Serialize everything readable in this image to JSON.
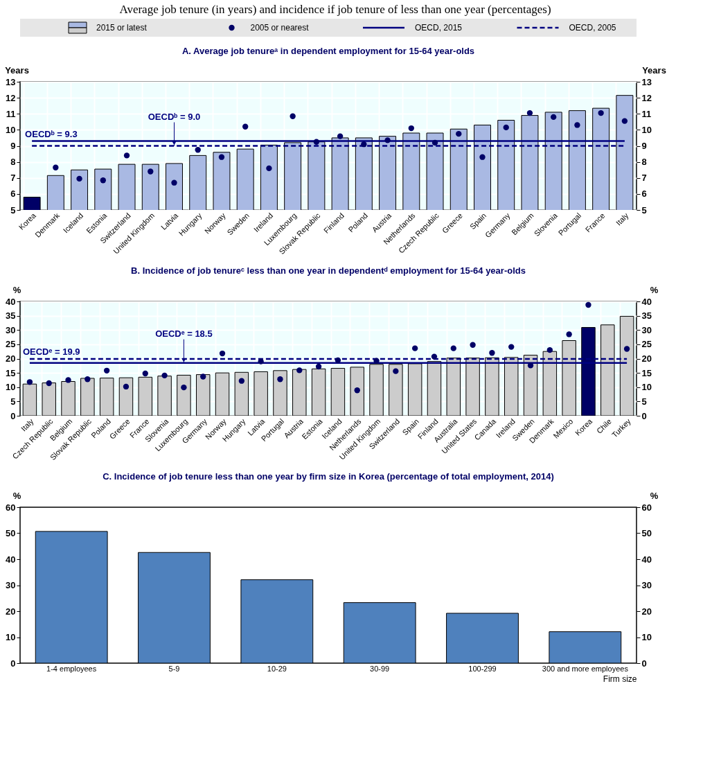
{
  "chart_data": [
    {
      "type": "bar",
      "title": "Average job tenure (in years) and incidence if job tenure of less than one year (percentages)",
      "subtitle": "A. Average job tenureᵃ in dependent employment for 15-64 year-olds",
      "legend": "top",
      "grid": true,
      "ylabel": "Years",
      "y2label": "Years",
      "ylim": [
        5,
        13
      ],
      "yticks": [
        5,
        6,
        7,
        8,
        9,
        10,
        11,
        12,
        13
      ],
      "y2lim": [
        5,
        13
      ],
      "y2ticks": [
        5,
        6,
        7,
        8,
        9,
        10,
        11,
        12,
        13
      ],
      "categories": [
        "Korea",
        "Denmark",
        "Iceland",
        "Estonia",
        "Switzerland",
        "United Kingdom",
        "Latvia",
        "Hungary",
        "Norway",
        "Sweden",
        "Ireland",
        "Luxembourg",
        "Slovak Republic",
        "Finland",
        "Poland",
        "Austria",
        "Netherlands",
        "Czech Republic",
        "Greece",
        "Spain",
        "Germany",
        "Belgium",
        "Slovenia",
        "Portugal",
        "France",
        "Italy"
      ],
      "series": [
        {
          "name": "2015 or latest",
          "type": "bar",
          "colors": [
            "#000066",
            "#a9b9e3",
            "#a9b9e3",
            "#a9b9e3",
            "#a9b9e3",
            "#a9b9e3",
            "#a9b9e3",
            "#a9b9e3",
            "#a9b9e3",
            "#a9b9e3",
            "#a9b9e3",
            "#a9b9e3",
            "#a9b9e3",
            "#a9b9e3",
            "#a9b9e3",
            "#a9b9e3",
            "#a9b9e3",
            "#a9b9e3",
            "#a9b9e3",
            "#a9b9e3",
            "#a9b9e3",
            "#a9b9e3",
            "#a9b9e3",
            "#a9b9e3",
            "#a9b9e3",
            "#a9b9e3"
          ],
          "values": [
            5.8,
            7.15,
            7.5,
            7.55,
            7.85,
            7.85,
            7.9,
            8.4,
            8.6,
            8.8,
            9.05,
            9.2,
            9.25,
            9.5,
            9.5,
            9.6,
            9.8,
            9.8,
            10.05,
            10.3,
            10.6,
            10.9,
            11.1,
            11.2,
            11.35,
            12.15
          ]
        },
        {
          "name": "2005 or nearest",
          "type": "scatter",
          "color": "#000066",
          "values": [
            null,
            7.65,
            6.95,
            6.85,
            8.4,
            7.4,
            6.7,
            8.75,
            8.3,
            10.2,
            7.6,
            10.85,
            9.25,
            9.6,
            9.1,
            9.35,
            10.1,
            9.2,
            9.75,
            8.3,
            10.15,
            11.05,
            10.8,
            10.3,
            11.05,
            10.55
          ]
        },
        {
          "name": "OECD, 2015",
          "type": "line",
          "line_style": "solid",
          "color": "#000080",
          "values": [
            9.3,
            9.3,
            9.3,
            9.3,
            9.3,
            9.3,
            9.3,
            9.3,
            9.3,
            9.3,
            9.3,
            9.3,
            9.3,
            9.3,
            9.3,
            9.3,
            9.3,
            9.3,
            9.3,
            9.3,
            9.3,
            9.3,
            9.3,
            9.3,
            9.3,
            9.3
          ]
        },
        {
          "name": "OECD, 2005",
          "type": "line",
          "line_style": "dashed",
          "color": "#000080",
          "values": [
            9.0,
            9.0,
            9.0,
            9.0,
            9.0,
            9.0,
            9.0,
            9.0,
            9.0,
            9.0,
            9.0,
            9.0,
            9.0,
            9.0,
            9.0,
            9.0,
            9.0,
            9.0,
            9.0,
            9.0,
            9.0,
            9.0,
            9.0,
            9.0,
            9.0,
            9.0
          ]
        }
      ],
      "annotations": [
        {
          "text": "OECDᵇ = 9.3",
          "x": "Korea",
          "y": 9.3
        },
        {
          "text": "OECDᵇ = 9.0",
          "x": "Latvia",
          "y": 9.0
        }
      ]
    },
    {
      "type": "bar",
      "title": "B. Incidence of job tenureᶜ less than one year in dependentᵈ employment for 15-64 year-olds",
      "grid": true,
      "ylabel": "%",
      "y2label": "%",
      "ylim": [
        0,
        40
      ],
      "yticks": [
        0,
        5,
        10,
        15,
        20,
        25,
        30,
        35,
        40
      ],
      "y2lim": [
        0,
        40
      ],
      "y2ticks": [
        0,
        5,
        10,
        15,
        20,
        25,
        30,
        35,
        40
      ],
      "categories": [
        "Italy",
        "Czech Republic",
        "Belgium",
        "Slovak Republic",
        "Poland",
        "Greece",
        "France",
        "Slovenia",
        "Luxembourg",
        "Germany",
        "Norway",
        "Hungary",
        "Latvia",
        "Portugal",
        "Austria",
        "Estonia",
        "Iceland",
        "Netherlands",
        "United Kingdom",
        "Switzerland",
        "Spain",
        "Finland",
        "Australia",
        "United States",
        "Canada",
        "Ireland",
        "Sweden",
        "Denmark",
        "Mexico",
        "Korea",
        "Chile",
        "Turkey"
      ],
      "series": [
        {
          "type": "bar",
          "colors": [
            "#cccccc",
            "#cccccc",
            "#cccccc",
            "#cccccc",
            "#cccccc",
            "#cccccc",
            "#cccccc",
            "#cccccc",
            "#cccccc",
            "#cccccc",
            "#cccccc",
            "#cccccc",
            "#cccccc",
            "#cccccc",
            "#cccccc",
            "#cccccc",
            "#cccccc",
            "#cccccc",
            "#cccccc",
            "#cccccc",
            "#cccccc",
            "#cccccc",
            "#cccccc",
            "#cccccc",
            "#cccccc",
            "#cccccc",
            "#cccccc",
            "#cccccc",
            "#cccccc",
            "#000066",
            "#cccccc",
            "#cccccc"
          ],
          "values": [
            11.1,
            11.5,
            12.0,
            13.1,
            13.2,
            13.3,
            13.5,
            13.9,
            14.2,
            14.4,
            15.0,
            15.2,
            15.4,
            15.8,
            16.2,
            16.4,
            16.6,
            17.0,
            18.0,
            18.0,
            18.2,
            19.0,
            20.2,
            20.2,
            20.3,
            20.4,
            21.2,
            22.5,
            26.3,
            30.9,
            31.8,
            34.8
          ]
        },
        {
          "type": "scatter",
          "color": "#000066",
          "values": [
            11.8,
            11.4,
            12.5,
            12.8,
            15.8,
            10.2,
            14.8,
            14.1,
            9.9,
            13.7,
            21.8,
            12.2,
            19.0,
            12.8,
            15.9,
            17.2,
            19.4,
            8.9,
            19.2,
            15.6,
            23.6,
            20.7,
            23.6,
            24.8,
            22.0,
            24.1,
            17.6,
            23.0,
            28.5,
            38.8,
            null,
            23.4
          ]
        },
        {
          "type": "line",
          "line_style": "solid",
          "color": "#000080",
          "values": [
            18.5,
            18.5,
            18.5,
            18.5,
            18.5,
            18.5,
            18.5,
            18.5,
            18.5,
            18.5,
            18.5,
            18.5,
            18.5,
            18.5,
            18.5,
            18.5,
            18.5,
            18.5,
            18.5,
            18.5,
            18.5,
            18.5,
            18.5,
            18.5,
            18.5,
            18.5,
            18.5,
            18.5,
            18.5,
            18.5,
            18.5,
            18.5
          ]
        },
        {
          "type": "line",
          "line_style": "dashed",
          "color": "#000080",
          "values": [
            19.9,
            19.9,
            19.9,
            19.9,
            19.9,
            19.9,
            19.9,
            19.9,
            19.9,
            19.9,
            19.9,
            19.9,
            19.9,
            19.9,
            19.9,
            19.9,
            19.9,
            19.9,
            19.9,
            19.9,
            19.9,
            19.9,
            19.9,
            19.9,
            19.9,
            19.9,
            19.9,
            19.9,
            19.9,
            19.9,
            19.9,
            19.9
          ]
        }
      ],
      "annotations": [
        {
          "text": "OECDᵉ = 19.9",
          "x": "Italy",
          "y": 19.9
        },
        {
          "text": "OECDᵉ = 18.5",
          "x": "Luxembourg",
          "y": 18.5
        }
      ]
    },
    {
      "type": "bar",
      "title": "C. Incidence of job tenure less than one year by firm size in Korea (percentage of total employment, 2014)",
      "xlabel": "Firm size",
      "ylabel": "%",
      "y2label": "%",
      "ylim": [
        0,
        60
      ],
      "yticks": [
        0,
        10,
        20,
        30,
        40,
        50,
        60
      ],
      "y2lim": [
        0,
        60
      ],
      "y2ticks": [
        0,
        10,
        20,
        30,
        40,
        50,
        60
      ],
      "categories": [
        "1-4 employees",
        "5-9",
        "10-29",
        "30-99",
        "100-299",
        "300 and more employees"
      ],
      "color": "#4f81bd",
      "values": [
        50.7,
        42.6,
        32.1,
        23.3,
        19.2,
        12.1
      ]
    }
  ]
}
